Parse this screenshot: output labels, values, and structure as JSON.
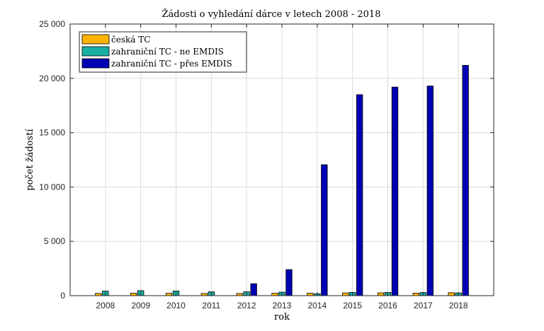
{
  "chart_data": {
    "type": "bar",
    "title": "Žádosti o vyhledání dárce v letech 2008 - 2018",
    "xlabel": "rok",
    "ylabel": "počet žádostí",
    "ylim": [
      0,
      25000
    ],
    "yticks": [
      0,
      5000,
      10000,
      15000,
      20000,
      25000
    ],
    "ytick_labels": [
      "0",
      "5 000",
      "10 000",
      "15 000",
      "20 000",
      "25 000"
    ],
    "grid": true,
    "legend_position": "top-left",
    "categories": [
      "2008",
      "2009",
      "2010",
      "2011",
      "2012",
      "2013",
      "2014",
      "2015",
      "2016",
      "2017",
      "2018"
    ],
    "series": [
      {
        "name": "česká TC",
        "color": "#FFB300",
        "values": [
          210,
          230,
          220,
          200,
          200,
          220,
          230,
          250,
          260,
          230,
          270
        ]
      },
      {
        "name": "zahraniční TC - ne EMDIS",
        "color": "#1AAFA3",
        "values": [
          420,
          460,
          430,
          350,
          350,
          320,
          170,
          300,
          300,
          290,
          250
        ]
      },
      {
        "name": "zahraniční TC - přes EMDIS",
        "color": "#0000B3",
        "values": [
          0,
          0,
          0,
          0,
          1100,
          2400,
          12050,
          18500,
          19200,
          19300,
          21200
        ]
      }
    ]
  }
}
